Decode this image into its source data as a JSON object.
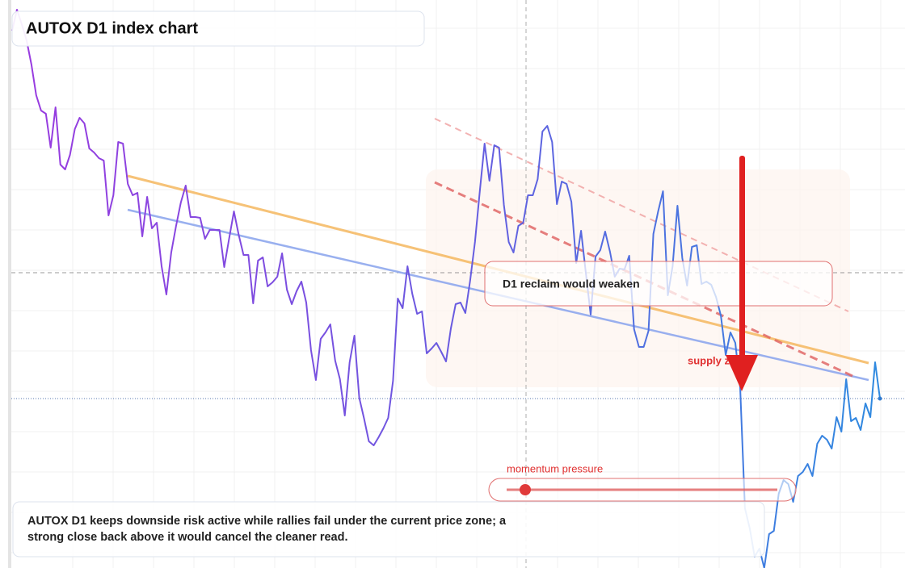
{
  "chart_data": {
    "type": "line",
    "title": "AUTOX D1 index chart",
    "annotations": {
      "zone": "D1 reclaim would weaken",
      "supply": "supply zone",
      "momentum": "momentum pressure",
      "note": "AUTOX D1 keeps downside risk active while rallies fail under the current price zone; a strong close back above it would cancel the cleaner read."
    },
    "ylim": [
      0,
      70.4
    ],
    "series": [
      {
        "name": "AUTOX D1",
        "color": "#8a3fe0",
        "values": [
          66.6,
          69.2,
          67.4,
          65.4,
          62.4,
          58.6,
          56.7,
          56.3,
          52.1,
          57.1,
          50,
          49.4,
          51.2,
          54.4,
          55.8,
          55.1,
          52,
          51.5,
          50.8,
          50.5,
          43.7,
          46.2,
          52.8,
          52.6,
          47.6,
          46.2,
          46.5,
          41.1,
          46,
          42.1,
          42.8,
          37.4,
          33.9,
          39.1,
          42.4,
          45.3,
          47.4,
          43.5,
          43.5,
          43.4,
          40.8,
          41.9,
          41.9,
          41.9,
          37.3,
          40.8,
          44.2,
          41.3,
          38.8,
          38.8,
          32.8,
          38.1,
          38.5,
          34.9,
          35.4,
          36.1,
          39,
          34.5,
          32.7,
          34.3,
          35.5,
          32.9,
          27,
          23.3,
          28.4,
          29.2,
          30.2,
          25.7,
          23.4,
          18.9,
          25.5,
          28.8,
          21.1,
          18.5,
          15.7,
          15.2,
          16.2,
          17.3,
          18.6,
          23.2,
          33.4,
          32.2,
          37.4,
          34,
          31.5,
          31.8,
          26.6,
          27.2,
          27.9,
          26.8,
          25.6,
          29.7,
          32.7,
          32.9,
          31.6,
          35.6,
          40.4,
          46.7,
          52.6,
          48,
          52.4,
          52.1,
          45,
          40.4,
          39.1,
          42.4,
          42.8,
          46.2,
          46.2,
          48.2,
          54.1,
          54.8,
          52.8,
          45.1,
          47.9,
          47.6,
          45.4,
          37.8,
          41.8,
          36.6,
          31.4,
          38.6,
          39.4,
          41.7,
          39.2,
          36.1,
          37.1,
          37,
          38.7,
          29.6,
          27.4,
          27.4,
          29.4,
          41.4,
          44.2,
          46.7,
          33.8,
          37.4,
          44.9,
          38.4,
          35,
          39.8,
          40,
          35.2,
          35.5,
          35.1,
          33.6,
          31.3,
          26.4,
          29.2,
          27.9,
          22.4,
          7.4,
          4.9,
          1.4,
          2.4,
          0,
          4.2,
          4.6,
          9.2,
          10.9,
          10.4,
          8.2,
          11.4,
          11.9,
          12.9,
          11.4,
          15.4,
          16.4,
          15.9,
          14.8,
          18.7,
          16.9,
          23.4,
          18.2,
          18.6,
          17.1,
          20.4,
          18.7,
          25.5,
          21
        ]
      }
    ]
  }
}
